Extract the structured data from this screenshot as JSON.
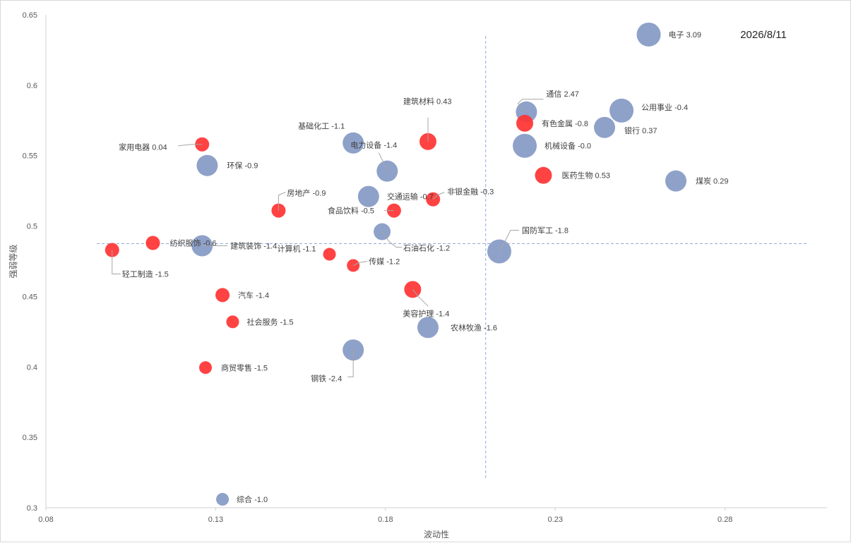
{
  "chart_data": {
    "type": "scatter",
    "xlabel": "波动性",
    "ylabel": "强弱等级",
    "annotation": "2026/8/11",
    "xlim": [
      0.08,
      0.31
    ],
    "ylim": [
      0.3,
      0.65
    ],
    "x_ticks": [
      "0.08",
      "0.13",
      "0.18",
      "0.23",
      "0.28"
    ],
    "y_ticks": [
      "0.3",
      "0.35",
      "0.4",
      "0.45",
      "0.5",
      "0.55",
      "0.6",
      "0.65"
    ],
    "reference_lines": {
      "x": 0.2095,
      "y": 0.4875
    },
    "colors": {
      "blue": "#8ea1c9",
      "red": "#ff3333",
      "axis": "#d0d0d0",
      "ref": "#8faadc"
    },
    "points": [
      {
        "name": "电子",
        "label": "电子 3.09",
        "x": 0.2575,
        "y": 0.636,
        "color": "blue",
        "size": "large"
      },
      {
        "name": "通信",
        "label": "通信 2.47",
        "x": 0.2215,
        "y": 0.581,
        "color": "blue",
        "size": "medium"
      },
      {
        "name": "公用事业",
        "label": "公用事业 -0.4",
        "x": 0.2495,
        "y": 0.582,
        "color": "blue",
        "size": "large"
      },
      {
        "name": "有色金属",
        "label": "有色金属 -0.8",
        "x": 0.221,
        "y": 0.573,
        "color": "red",
        "size": "small"
      },
      {
        "name": "银行",
        "label": "银行 0.37",
        "x": 0.2445,
        "y": 0.57,
        "color": "blue",
        "size": "medium"
      },
      {
        "name": "机械设备",
        "label": "机械设备 -0.0",
        "x": 0.221,
        "y": 0.557,
        "color": "blue",
        "size": "large"
      },
      {
        "name": "医药生物",
        "label": "医药生物 0.53",
        "x": 0.2265,
        "y": 0.536,
        "color": "red",
        "size": "small"
      },
      {
        "name": "煤炭",
        "label": "煤炭 0.29",
        "x": 0.2655,
        "y": 0.532,
        "color": "blue",
        "size": "medium"
      },
      {
        "name": "建筑材料",
        "label": "建筑材料 0.43",
        "x": 0.1925,
        "y": 0.56,
        "color": "red",
        "size": "small"
      },
      {
        "name": "基础化工",
        "label": "基础化工 -1.1",
        "x": 0.1705,
        "y": 0.559,
        "color": "blue",
        "size": "medium"
      },
      {
        "name": "电力设备",
        "label": "电力设备 -1.4",
        "x": 0.1805,
        "y": 0.539,
        "color": "blue",
        "size": "medium"
      },
      {
        "name": "家用电器",
        "label": "家用电器 0.04",
        "x": 0.126,
        "y": 0.558,
        "color": "red",
        "size": "tiny"
      },
      {
        "name": "环保",
        "label": "环保 -0.9",
        "x": 0.1275,
        "y": 0.543,
        "color": "blue",
        "size": "medium"
      },
      {
        "name": "交通运输",
        "label": "交通运输 -0.7",
        "x": 0.175,
        "y": 0.521,
        "color": "blue",
        "size": "medium"
      },
      {
        "name": "非银金融",
        "label": "非银金融 -0.3",
        "x": 0.194,
        "y": 0.519,
        "color": "red",
        "size": "tiny"
      },
      {
        "name": "房地产",
        "label": "房地产 -0.9",
        "x": 0.1485,
        "y": 0.511,
        "color": "red",
        "size": "tiny"
      },
      {
        "name": "食品饮料",
        "label": "食品饮料 -0.5",
        "x": 0.1825,
        "y": 0.511,
        "color": "red",
        "size": "tiny"
      },
      {
        "name": "石油石化",
        "label": "石油石化 -1.2",
        "x": 0.179,
        "y": 0.496,
        "color": "blue",
        "size": "small"
      },
      {
        "name": "国防军工",
        "label": "国防军工 -1.8",
        "x": 0.2135,
        "y": 0.482,
        "color": "blue",
        "size": "large"
      },
      {
        "name": "纺织服饰",
        "label": "纺织服饰 -0.6",
        "x": 0.1115,
        "y": 0.488,
        "color": "red",
        "size": "tiny"
      },
      {
        "name": "建筑装饰",
        "label": "建筑装饰 -1.4",
        "x": 0.126,
        "y": 0.486,
        "color": "blue",
        "size": "medium"
      },
      {
        "name": "轻工制造",
        "label": "轻工制造 -1.5",
        "x": 0.0995,
        "y": 0.483,
        "color": "red",
        "size": "tiny"
      },
      {
        "name": "计算机",
        "label": "计算机 -1.1",
        "x": 0.1635,
        "y": 0.48,
        "color": "red",
        "size": "mini"
      },
      {
        "name": "传媒",
        "label": "传媒 -1.2",
        "x": 0.1705,
        "y": 0.472,
        "color": "red",
        "size": "mini"
      },
      {
        "name": "汽车",
        "label": "汽车 -1.4",
        "x": 0.132,
        "y": 0.451,
        "color": "red",
        "size": "tiny"
      },
      {
        "name": "美容护理",
        "label": "美容护理 -1.4",
        "x": 0.188,
        "y": 0.455,
        "color": "red",
        "size": "small"
      },
      {
        "name": "社会服务",
        "label": "社会服务 -1.5",
        "x": 0.135,
        "y": 0.432,
        "color": "red",
        "size": "mini"
      },
      {
        "name": "农林牧渔",
        "label": "农林牧渔 -1.6",
        "x": 0.1925,
        "y": 0.428,
        "color": "blue",
        "size": "medium"
      },
      {
        "name": "钢铁",
        "label": "钢铁 -2.4",
        "x": 0.1705,
        "y": 0.412,
        "color": "blue",
        "size": "medium"
      },
      {
        "name": "商贸零售",
        "label": "商贸零售 -1.5",
        "x": 0.127,
        "y": 0.3995,
        "color": "red",
        "size": "mini"
      },
      {
        "name": "综合",
        "label": "综合 -1.0",
        "x": 0.132,
        "y": 0.306,
        "color": "blue",
        "size": "mini"
      }
    ]
  }
}
